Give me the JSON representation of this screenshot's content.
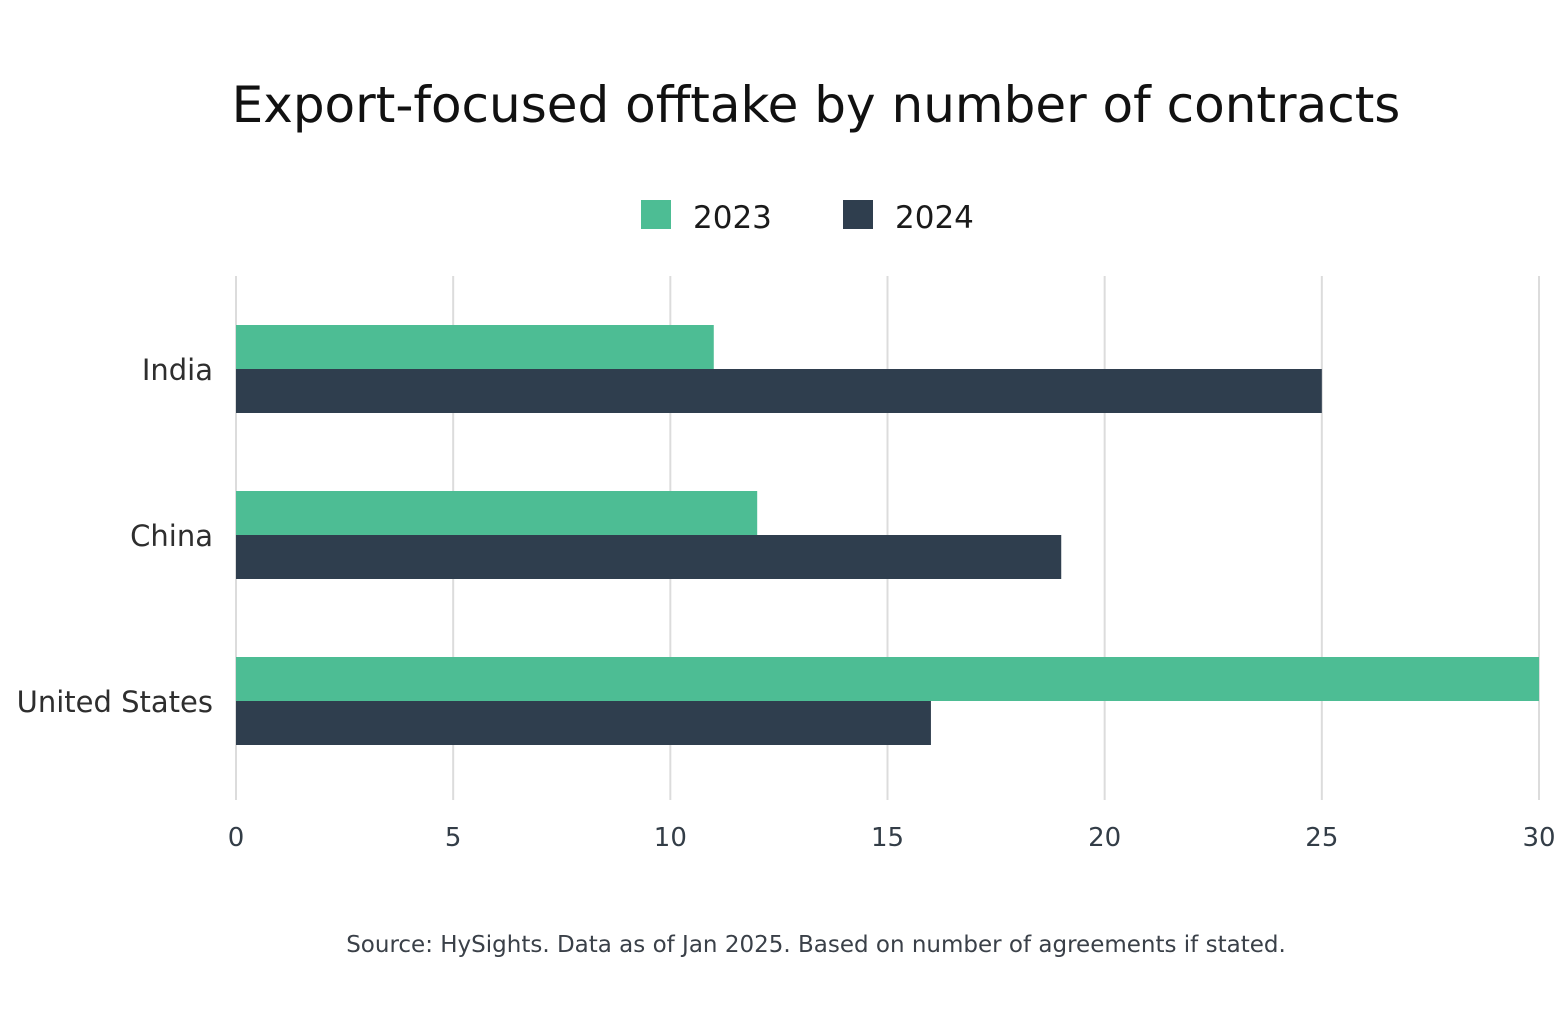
{
  "chart_data": {
    "type": "bar",
    "orientation": "horizontal",
    "title": "Export-focused offtake by number of contracts",
    "categories": [
      "India",
      "China",
      "United States"
    ],
    "series": [
      {
        "name": "2023",
        "color": "#4dbd94",
        "values": [
          11,
          12,
          30
        ]
      },
      {
        "name": "2024",
        "color": "#2f3e4e",
        "values": [
          25,
          19,
          16
        ]
      }
    ],
    "xlabel": "",
    "ylabel": "",
    "xlim": [
      0,
      30
    ],
    "xticks": [
      0,
      5,
      10,
      15,
      20,
      25,
      30
    ],
    "grid": true,
    "legend_position": "top-center",
    "source": "Source: HySights. Data as of Jan 2025. Based on number of agreements if stated."
  }
}
